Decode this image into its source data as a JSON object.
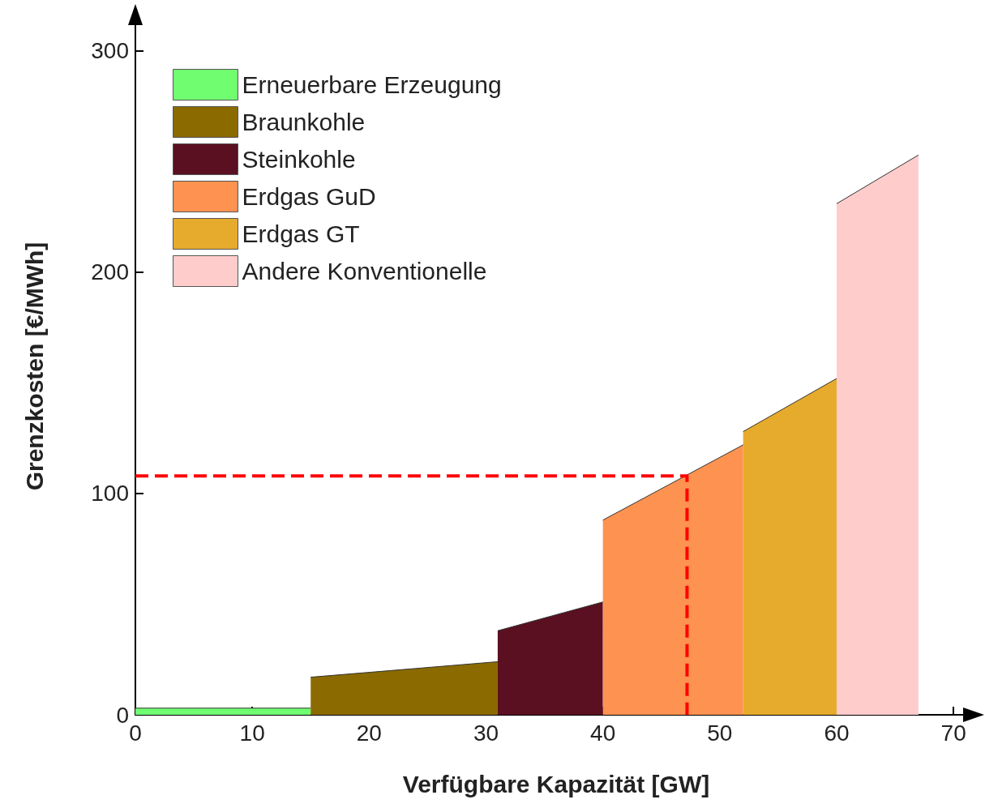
{
  "chart_data": {
    "type": "area",
    "xlabel": "Verfügbare Kapazität [GW]",
    "ylabel": "Grenzkosten [€/MWh]",
    "xlim": [
      0,
      72
    ],
    "xticks": [
      0,
      10,
      20,
      30,
      40,
      50,
      60,
      70
    ],
    "ylim": [
      0,
      315
    ],
    "yticks": [
      0,
      100,
      200,
      300
    ],
    "grid": false,
    "legend": "top left",
    "marker": "none",
    "series": [
      {
        "name": "Erneuerbare Erzeugung",
        "color": "#70fe70",
        "x": [
          0,
          15
        ],
        "values": [
          3,
          3
        ]
      },
      {
        "name": "Braunkohle",
        "color": "#8b6a00",
        "x": [
          15,
          31
        ],
        "values": [
          17,
          24
        ]
      },
      {
        "name": "Steinkohle",
        "color": "#5a1020",
        "x": [
          31,
          40
        ],
        "values": [
          38,
          51
        ]
      },
      {
        "name": "Erdgas GuD",
        "color": "#fe9250",
        "x": [
          40,
          52
        ],
        "values": [
          88,
          122
        ]
      },
      {
        "name": "Erdgas GT",
        "color": "#e6ab2c",
        "x": [
          52,
          60
        ],
        "values": [
          128,
          152
        ]
      },
      {
        "name": "Andere Konventionelle",
        "color": "#ffcccc",
        "x": [
          60,
          67
        ],
        "values": [
          231,
          253
        ]
      },
      {
        "type": "line",
        "color": "#ff0000",
        "line_style": "dashed",
        "x": [
          0,
          47.2,
          47.2
        ],
        "values": [
          108,
          108,
          0
        ]
      }
    ]
  }
}
